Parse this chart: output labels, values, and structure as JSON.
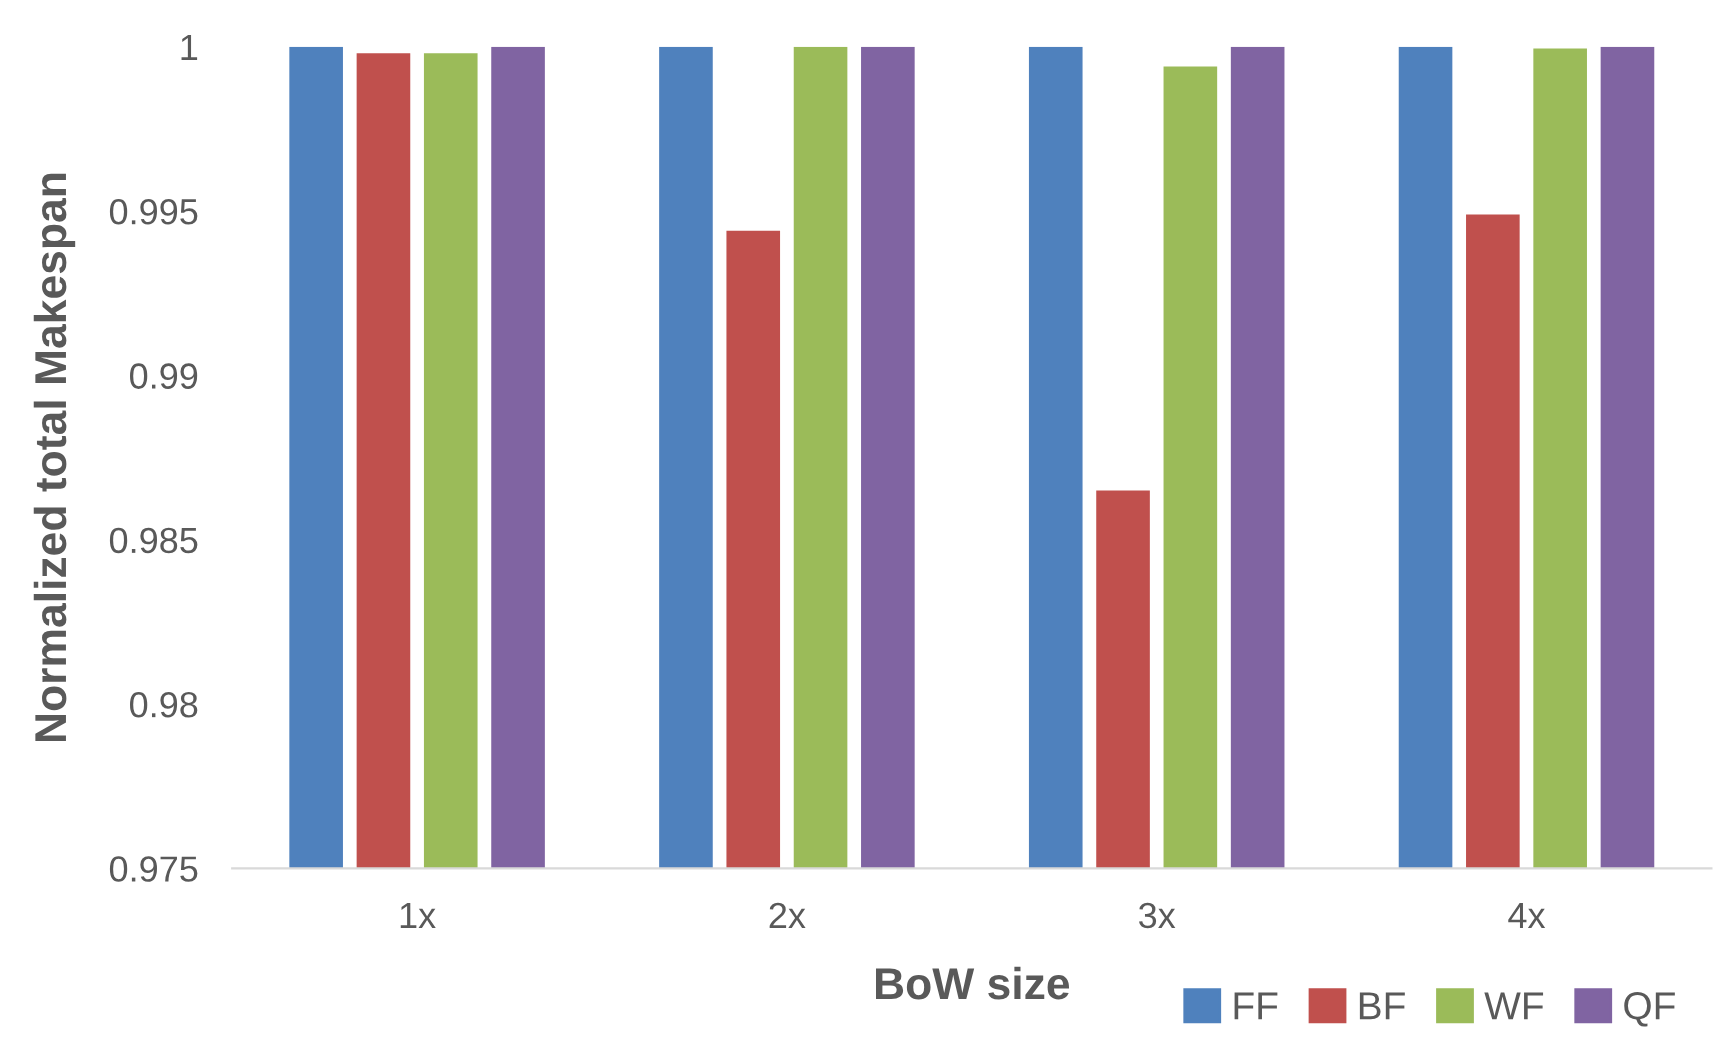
{
  "chart_data": {
    "type": "bar",
    "xlabel": "BoW size",
    "ylabel": "Normalized total Makespan",
    "categories": [
      "1x",
      "2x",
      "3x",
      "4x"
    ],
    "series": [
      {
        "name": "FF",
        "color": "#4f81bd",
        "values": [
          1,
          1,
          1,
          1
        ]
      },
      {
        "name": "BF",
        "color": "#c0504d",
        "values": [
          0.9998,
          0.9944,
          0.9865,
          0.9949
        ]
      },
      {
        "name": "WF",
        "color": "#9bbb59",
        "values": [
          0.9998,
          1,
          0.9994,
          0.99995
        ]
      },
      {
        "name": "QF",
        "color": "#8064a2",
        "values": [
          1,
          1,
          1,
          1
        ]
      }
    ],
    "ylim": [
      0.975,
      1
    ],
    "yticks": [
      0.975,
      0.98,
      0.985,
      0.99,
      0.995,
      1
    ],
    "grid": false,
    "legend": "bottom right"
  }
}
